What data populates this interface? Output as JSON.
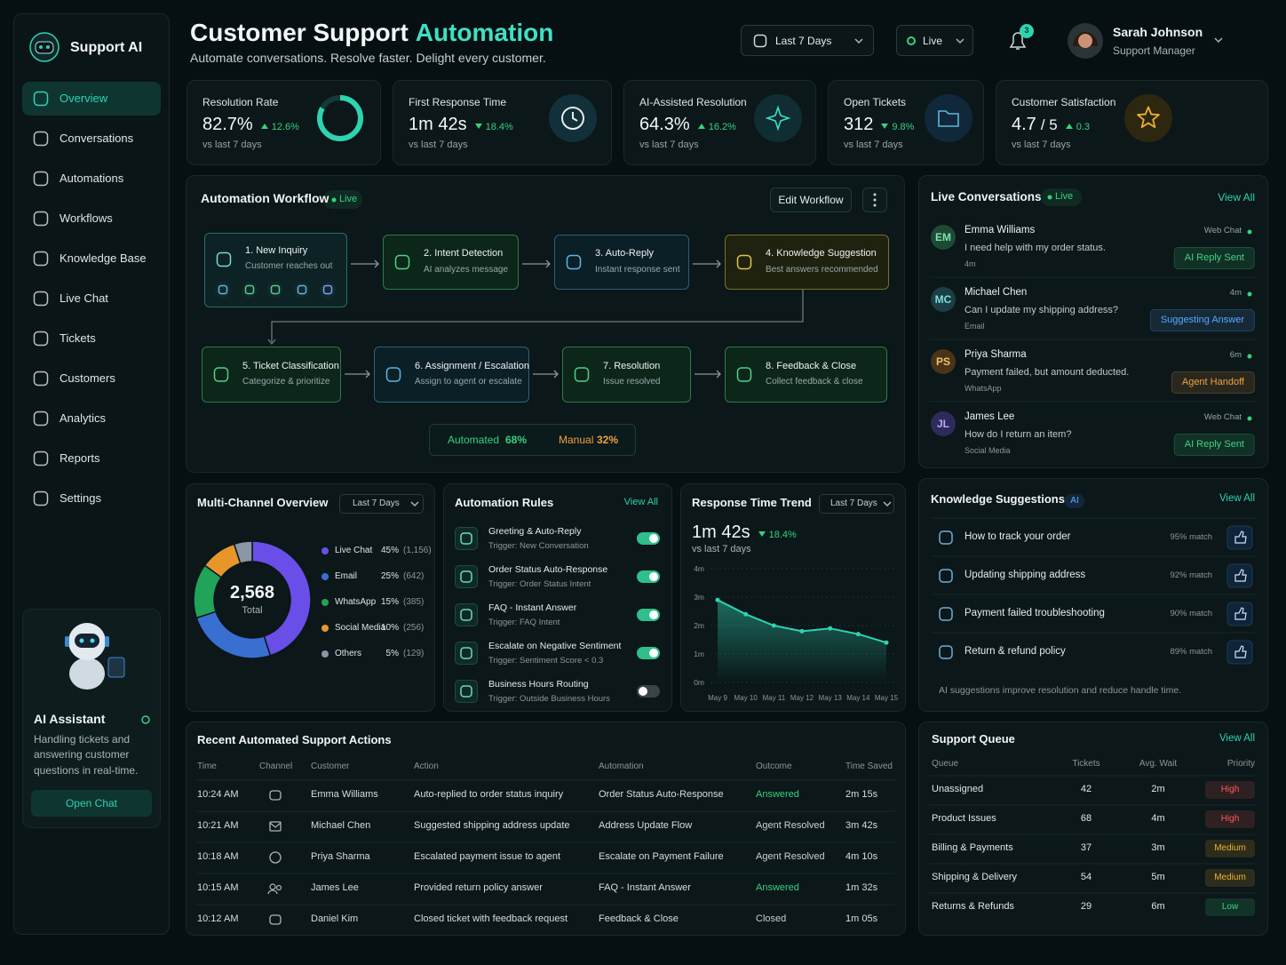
{
  "sidebar": {
    "brand": "Support AI",
    "nav": [
      "Overview",
      "Conversations",
      "Automations",
      "Workflows",
      "Knowledge Base",
      "Live Chat",
      "Tickets",
      "Customers",
      "Analytics",
      "Reports",
      "Settings"
    ],
    "assistant": {
      "title": "AI Assistant",
      "text": "Handling tickets and answering customer questions in real-time.",
      "button": "Open Chat"
    }
  },
  "header": {
    "title": "Customer Support",
    "title_accent": "Automation",
    "subtitle": "Automate conversations. Resolve faster. Delight every customer.",
    "range": "Last 7 Days",
    "mode": "Live",
    "notifications": "3",
    "user": {
      "name": "Sarah Johnson",
      "role": "Support Manager"
    }
  },
  "kpis": [
    {
      "label": "Resolution Rate",
      "value": "82.7%",
      "change": "12.6%",
      "trend": "up",
      "note": "vs last 7 days"
    },
    {
      "label": "First Response Time",
      "value": "1m 42s",
      "change": "18.4%",
      "trend": "down",
      "note": "vs last 7 days"
    },
    {
      "label": "AI-Assisted Resolution",
      "value": "64.3%",
      "change": "16.2%",
      "trend": "up",
      "note": "vs last 7 days"
    },
    {
      "label": "Open Tickets",
      "value": "312",
      "change": "9.8%",
      "trend": "down",
      "note": "vs last 7 days"
    },
    {
      "label": "Customer Satisfaction",
      "value": "4.7",
      "suffix": "/ 5",
      "change": "0.3",
      "trend": "up",
      "note": "vs last 7 days"
    }
  ],
  "workflow": {
    "title": "Automation Workflow",
    "status": "Live",
    "edit": "Edit Workflow",
    "steps": [
      {
        "title": "1. New Inquiry",
        "desc": "Customer reaches out"
      },
      {
        "title": "2. Intent Detection",
        "desc": "AI analyzes message"
      },
      {
        "title": "3. Auto-Reply",
        "desc": "Instant response sent"
      },
      {
        "title": "4. Knowledge Suggestion",
        "desc": "Best answers recommended"
      },
      {
        "title": "5. Ticket Classification",
        "desc": "Categorize & prioritize"
      },
      {
        "title": "6. Assignment / Escalation",
        "desc": "Assign to agent or escalate"
      },
      {
        "title": "7. Resolution",
        "desc": "Issue resolved"
      },
      {
        "title": "8. Feedback & Close",
        "desc": "Collect feedback & close"
      }
    ],
    "automated_label": "Automated",
    "automated": "68%",
    "manual_label": "Manual",
    "manual": "32%"
  },
  "live": {
    "title": "Live Conversations",
    "status": "Live",
    "link": "View All",
    "items": [
      {
        "initials": "EM",
        "name": "Emma Williams",
        "message": "I need help with my order status.",
        "top": "Web Chat",
        "bottom": "4m",
        "tag": "AI Reply Sent",
        "tag_color": "#3fd67f"
      },
      {
        "initials": "MC",
        "name": "Michael Chen",
        "message": "Can I update my shipping address?",
        "top": "4m",
        "bottom": "Email",
        "tag": "Suggesting Answer",
        "tag_color": "#5aa8ff"
      },
      {
        "initials": "PS",
        "name": "Priya Sharma",
        "message": "Payment failed, but amount deducted.",
        "top": "6m",
        "bottom": "WhatsApp",
        "tag": "Agent Handoff",
        "tag_color": "#f0a040"
      },
      {
        "initials": "JL",
        "name": "James Lee",
        "message": "How do I return an item?",
        "top": "Web Chat",
        "bottom": "Social Media",
        "tag": "AI Reply Sent",
        "tag_color": "#3fd67f"
      }
    ]
  },
  "channels": {
    "title": "Multi-Channel Overview",
    "range": "Last 7 Days",
    "total": "2,568",
    "total_label": "Total",
    "items": [
      {
        "name": "Live Chat",
        "value": 45,
        "label": "45%",
        "count": "(1,156)",
        "color": "#6a4ee8"
      },
      {
        "name": "Email",
        "value": 25,
        "label": "25%",
        "count": "(642)",
        "color": "#3a6fd2"
      },
      {
        "name": "WhatsApp",
        "value": 15,
        "label": "15%",
        "count": "(385)",
        "color": "#22a35a"
      },
      {
        "name": "Social Media",
        "value": 10,
        "label": "10%",
        "count": "(256)",
        "color": "#e8962a"
      },
      {
        "name": "Others",
        "value": 5,
        "label": "5%",
        "count": "(129)",
        "color": "#8a96a3"
      }
    ]
  },
  "rules": {
    "title": "Automation Rules",
    "link": "View All",
    "items": [
      {
        "name": "Greeting & Auto-Reply",
        "trigger": "Trigger: New Conversation",
        "enabled": true
      },
      {
        "name": "Order Status Auto-Response",
        "trigger": "Trigger: Order Status Intent",
        "enabled": true
      },
      {
        "name": "FAQ - Instant Answer",
        "trigger": "Trigger: FAQ Intent",
        "enabled": true
      },
      {
        "name": "Escalate on Negative Sentiment",
        "trigger": "Trigger: Sentiment Score < 0.3",
        "enabled": true
      },
      {
        "name": "Business Hours Routing",
        "trigger": "Trigger: Outside Business Hours",
        "enabled": false
      }
    ]
  },
  "trend": {
    "title": "Response Time Trend",
    "range": "Last 7 Days",
    "value": "1m 42s",
    "change": "18.4%",
    "note": "vs last 7 days",
    "chart": {
      "type": "line",
      "categories": [
        "May 9",
        "May 10",
        "May 11",
        "May 12",
        "May 13",
        "May 14",
        "May 15"
      ],
      "values": [
        2.9,
        2.4,
        2.0,
        1.8,
        1.9,
        1.7,
        1.4
      ],
      "color": "#2ed3b0",
      "ylim": [
        0,
        4
      ],
      "yticks": [
        {
          "value": 0,
          "label": "0m"
        },
        {
          "value": 1,
          "label": "1m"
        },
        {
          "value": 2,
          "label": "2m"
        },
        {
          "value": 3,
          "label": "3m"
        },
        {
          "value": 4,
          "label": "4m"
        }
      ],
      "grid": true
    }
  },
  "knowledge": {
    "title": "Knowledge Suggestions",
    "badge": "AI",
    "link": "View All",
    "items": [
      {
        "title": "How to track your order",
        "match": "95% match"
      },
      {
        "title": "Updating shipping address",
        "match": "92% match"
      },
      {
        "title": "Payment failed troubleshooting",
        "match": "90% match"
      },
      {
        "title": "Return & refund policy",
        "match": "89% match"
      }
    ],
    "footer": "AI suggestions improve resolution and reduce handle time."
  },
  "actions": {
    "title": "Recent Automated Support Actions",
    "columns": [
      "Time",
      "Channel",
      "Customer",
      "Action",
      "Automation",
      "Outcome",
      "Time Saved"
    ],
    "rows": [
      {
        "time": "10:24 AM",
        "channel": "chat",
        "customer": "Emma Williams",
        "action": "Auto-replied to order status inquiry",
        "automation": "Order Status Auto-Response",
        "outcome": "Answered",
        "outcome_color": "#34d27f",
        "saved": "2m 15s"
      },
      {
        "time": "10:21 AM",
        "channel": "email",
        "customer": "Michael Chen",
        "action": "Suggested shipping address update",
        "automation": "Address Update Flow",
        "outcome": "Agent Resolved",
        "saved": "3m 42s"
      },
      {
        "time": "10:18 AM",
        "channel": "whatsapp",
        "customer": "Priya Sharma",
        "action": "Escalated payment issue to agent",
        "automation": "Escalate on Payment Failure",
        "outcome": "Agent Resolved",
        "saved": "4m 10s"
      },
      {
        "time": "10:15 AM",
        "channel": "social",
        "customer": "James Lee",
        "action": "Provided return policy answer",
        "automation": "FAQ - Instant Answer",
        "outcome": "Answered",
        "outcome_color": "#34d27f",
        "saved": "1m 32s"
      },
      {
        "time": "10:12 AM",
        "channel": "chat",
        "customer": "Daniel Kim",
        "action": "Closed ticket with feedback request",
        "automation": "Feedback & Close",
        "outcome": "Closed",
        "saved": "1m 05s"
      }
    ]
  },
  "queue": {
    "title": "Support Queue",
    "link": "View All",
    "columns": [
      "Queue",
      "Tickets",
      "Avg. Wait",
      "Priority"
    ],
    "rows": [
      {
        "queue": "Unassigned",
        "tickets": 42,
        "wait": "2m",
        "priority": "High",
        "priority_color": "#ff5a5a"
      },
      {
        "queue": "Product Issues",
        "tickets": 68,
        "wait": "4m",
        "priority": "High",
        "priority_color": "#ff5a5a"
      },
      {
        "queue": "Billing & Payments",
        "tickets": 37,
        "wait": "3m",
        "priority": "Medium",
        "priority_color": "#f0b030"
      },
      {
        "queue": "Shipping & Delivery",
        "tickets": 54,
        "wait": "5m",
        "priority": "Medium",
        "priority_color": "#f0b030"
      },
      {
        "queue": "Returns & Refunds",
        "tickets": 29,
        "wait": "6m",
        "priority": "Low",
        "priority_color": "#3fd67f"
      }
    ]
  }
}
